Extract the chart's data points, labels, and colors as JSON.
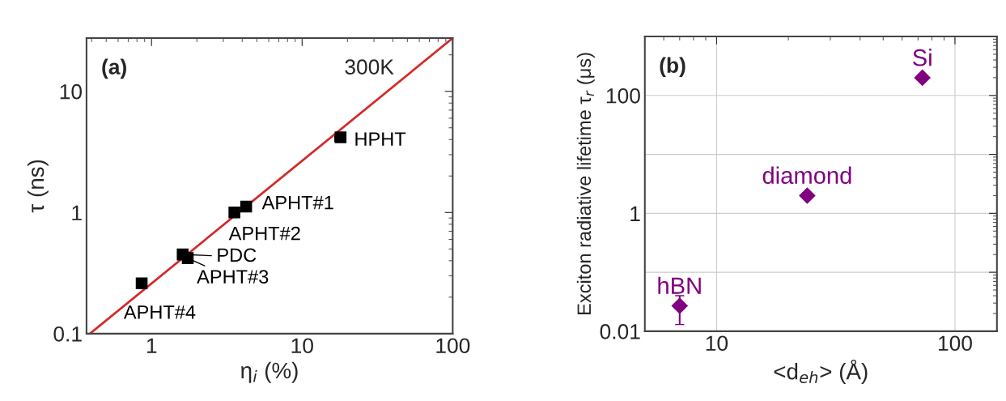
{
  "chart_data": [
    {
      "type": "scatter",
      "xlabel": "η$_{i}$ (%)",
      "ylabel": "τ (ns)",
      "log": "xy",
      "xlim": [
        0.37,
        100
      ],
      "ylim": [
        0.1,
        27.5
      ],
      "xticks": [
        1,
        10,
        100
      ],
      "yticks": [
        0.1,
        1,
        10
      ],
      "grid": false,
      "series": [
        {
          "marker": "square",
          "color": "#000000",
          "x": [
            0.86,
            1.61,
            1.74,
            3.55,
            4.25,
            18.0
          ],
          "values": [
            0.26,
            0.45,
            0.42,
            1.0,
            1.12,
            4.17
          ],
          "xerrors": [
            null,
            null,
            null,
            null,
            null,
            1.5
          ]
        },
        {
          "type": "line",
          "line_style": "solid",
          "color": "#d42a2a",
          "x": [
            0.39,
            100
          ],
          "values": [
            0.1,
            27.5
          ]
        }
      ],
      "annotations": [
        "(a)",
        "300K",
        {
          "text": "APHT#4",
          "x": 0.86,
          "y": 0.26
        },
        {
          "text": "PDC",
          "x": 1.61,
          "y": 0.45
        },
        {
          "text": "APHT#3",
          "x": 1.74,
          "y": 0.42
        },
        {
          "text": "APHT#2",
          "x": 3.55,
          "y": 1.0
        },
        {
          "text": "APHT#1",
          "x": 4.25,
          "y": 1.12
        },
        {
          "text": "HPHT",
          "x": 18.0,
          "y": 4.17
        }
      ]
    },
    {
      "type": "scatter",
      "xlabel": "<d$_{eh}$> (Å)",
      "ylabel": "Exciton radiative lifetime τ$_{r}$ (μs)",
      "log": "xy",
      "xlim": [
        5.0,
        150
      ],
      "ylim": [
        0.01,
        1000
      ],
      "xticks": [
        10,
        100
      ],
      "yticks": [
        0.01,
        {
          "value": 0.1,
          "label": null
        },
        1,
        {
          "value": 10,
          "label": null
        },
        100
      ],
      "grid": true,
      "series": [
        {
          "marker": "diamond",
          "color": "#800080",
          "x": [
            7.0,
            24,
            73
          ],
          "values": [
            0.027,
            2.0,
            200
          ],
          "errors": [
            [
              0.013,
              0.04
            ],
            null,
            null
          ]
        }
      ],
      "annotations": [
        "(b)",
        {
          "text": "hBN",
          "x": 7.0,
          "y": 0.027
        },
        {
          "text": "diamond",
          "x": 24,
          "y": 2.0
        },
        {
          "text": "Si",
          "x": 73,
          "y": 200
        }
      ]
    }
  ]
}
